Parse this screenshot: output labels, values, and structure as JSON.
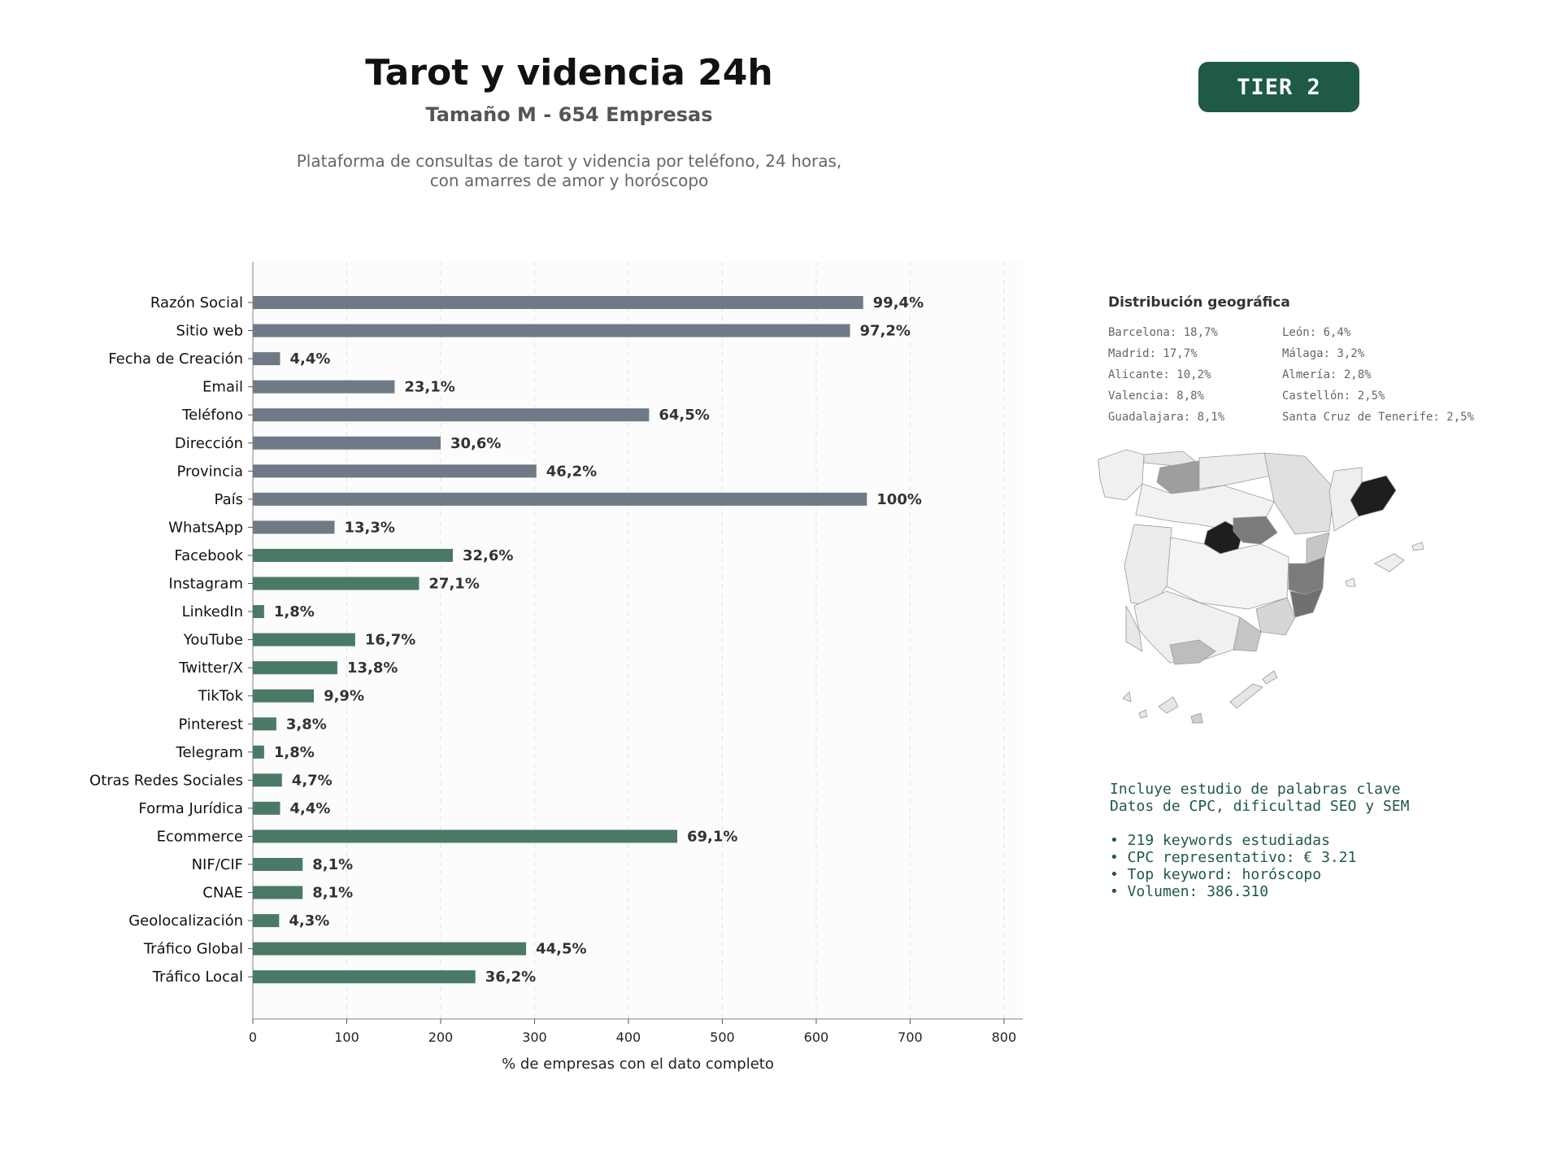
{
  "header": {
    "title": "Tarot y videncia 24h",
    "subtitle": "Tamaño M - 654 Empresas",
    "description_line1": "Plataforma de consultas de tarot y videncia por teléfono, 24 horas,",
    "description_line2": "con amarres de amor y horóscopo",
    "tier_label": "TIER 2"
  },
  "colors": {
    "gray_bar": "#6f7a86",
    "green_bar": "#4a7a66",
    "accent": "#1e5a44"
  },
  "chart_data": {
    "type": "bar",
    "orientation": "horizontal",
    "xlabel": "% de empresas con el dato completo",
    "ylabel": "",
    "xlim": [
      0,
      820
    ],
    "xticks": [
      0,
      100,
      200,
      300,
      400,
      500,
      600,
      700,
      800
    ],
    "grid": "vertical dashed",
    "categories": [
      "Razón Social",
      "Sitio web",
      "Fecha de Creación",
      "Email",
      "Teléfono",
      "Dirección",
      "Provincia",
      "País",
      "WhatsApp",
      "Facebook",
      "Instagram",
      "LinkedIn",
      "YouTube",
      "Twitter/X",
      "TikTok",
      "Pinterest",
      "Telegram",
      "Otras Redes Sociales",
      "Forma Jurídica",
      "Ecommerce",
      "NIF/CIF",
      "CNAE",
      "Geolocalización",
      "Tráfico Global",
      "Tráfico Local"
    ],
    "values": [
      650,
      636,
      29,
      151,
      422,
      200,
      302,
      654,
      87,
      213,
      177,
      12,
      109,
      90,
      65,
      25,
      12,
      31,
      29,
      452,
      53,
      53,
      28,
      291,
      237
    ],
    "labels": [
      "99,4%",
      "97,2%",
      "4,4%",
      "23,1%",
      "64,5%",
      "30,6%",
      "46,2%",
      "100%",
      "13,3%",
      "32,6%",
      "27,1%",
      "1,8%",
      "16,7%",
      "13,8%",
      "9,9%",
      "3,8%",
      "1,8%",
      "4,7%",
      "4,4%",
      "69,1%",
      "8,1%",
      "8,1%",
      "4,3%",
      "44,5%",
      "36,2%"
    ],
    "bar_colors": [
      "gray",
      "gray",
      "gray",
      "gray",
      "gray",
      "gray",
      "gray",
      "gray",
      "gray",
      "green",
      "green",
      "green",
      "green",
      "green",
      "green",
      "green",
      "green",
      "green",
      "green",
      "green",
      "green",
      "green",
      "green",
      "green",
      "green"
    ]
  },
  "geo": {
    "title": "Distribución geográfica",
    "col1": [
      "Barcelona: 18,7%",
      "Madrid: 17,7%",
      "Alicante: 10,2%",
      "Valencia: 8,8%",
      "Guadalajara: 8,1%"
    ],
    "col2": [
      "León: 6,4%",
      "Málaga: 3,2%",
      "Almería: 2,8%",
      "Castellón: 2,5%",
      "Santa Cruz de Tenerife: 2,5%"
    ]
  },
  "keywords": {
    "line1": "Incluye estudio de palabras clave",
    "line2": "Datos de CPC, dificultad SEO y SEM",
    "items": [
      "• 219 keywords estudiadas",
      "• CPC representativo: € 3.21",
      "• Top keyword: horóscopo",
      "• Volumen: 386.310"
    ]
  }
}
